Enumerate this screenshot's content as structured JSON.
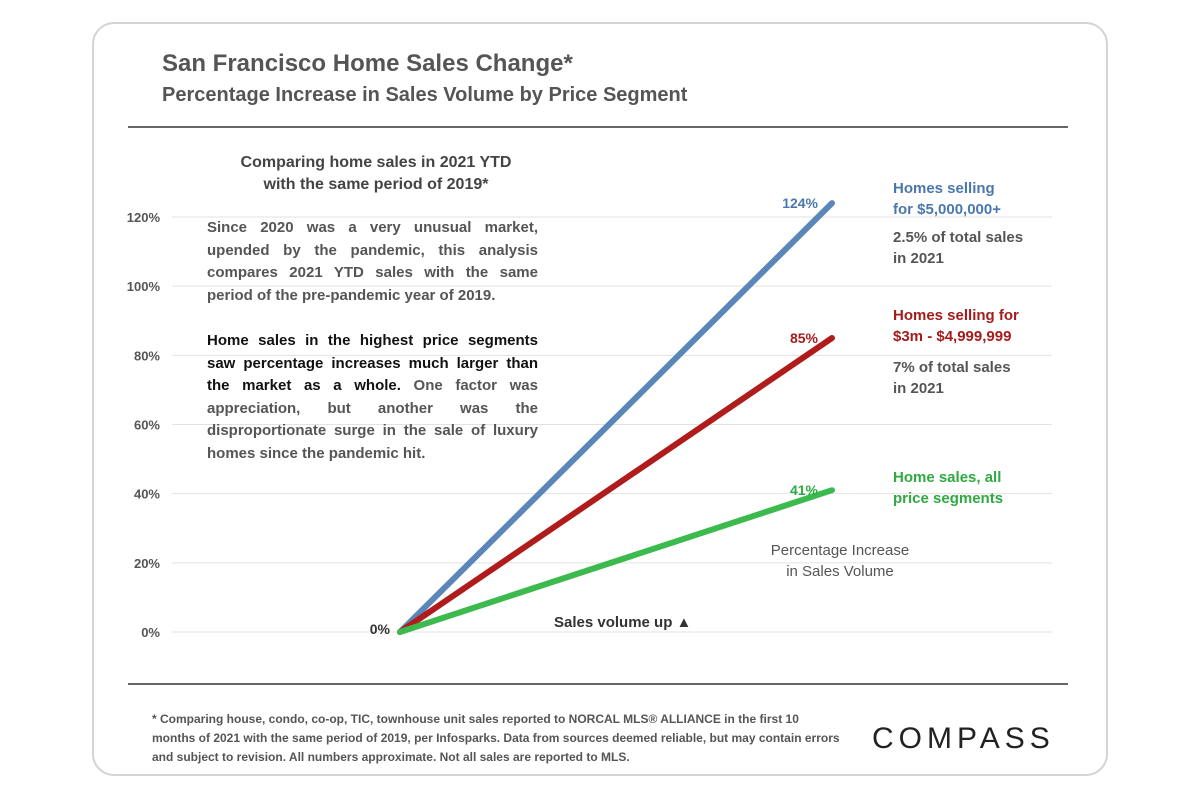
{
  "title": "San Francisco Home Sales Change*",
  "subtitle": "Percentage Increase in Sales Volume by Price Segment",
  "text_panel": {
    "heading_line1": "Comparing home sales in 2021 YTD",
    "heading_line2": "with the same period of 2019*",
    "para1": "Since 2020 was a very unusual market, upended by the pandemic, this analysis compares 2021 YTD sales with the same period of the pre-pandemic year of 2019.",
    "para2_bold": "Home sales in the highest price segments saw percentage increases much larger than the market as a whole.",
    "para2_rest": " One factor was appreciation, but another was the disproportionate surge in the sale of luxury homes since the pandemic hit."
  },
  "annotations": {
    "blue_line1": "Homes selling",
    "blue_line2": "for $5,000,000+",
    "blue_share1": "2.5% of total sales",
    "blue_share2": "in 2021",
    "red_line1": "Homes selling for",
    "red_line2": "$3m - $4,999,999",
    "red_share1": "7% of total sales",
    "red_share2": "in 2021",
    "green_line1": "Home sales, all",
    "green_line2": "price segments",
    "axis_caption1": "Percentage Increase",
    "axis_caption2": "in Sales Volume",
    "sales_volume_up": "Sales volume up ▲"
  },
  "footnote": "* Comparing house, condo, co-op, TIC, townhouse unit sales reported to NORCAL MLS® ALLIANCE in the first 10 months of 2021 with the same period of 2019, per Infosparks. Data from sources deemed reliable, but may contain errors and subject to revision. All numbers approximate. Not all sales are reported to MLS.",
  "logo": "COMPASS",
  "chart_data": {
    "type": "line",
    "x": [
      0,
      1
    ],
    "ylim": [
      0,
      120
    ],
    "yticks": [
      "0%",
      "20%",
      "40%",
      "60%",
      "80%",
      "100%",
      "120%"
    ],
    "ytick_values": [
      0,
      20,
      40,
      60,
      80,
      100,
      120
    ],
    "grid": true,
    "series": [
      {
        "name": "Homes selling for $5,000,000+",
        "values": [
          0,
          124
        ],
        "color": "#5b86b8",
        "start_label": "",
        "end_label": "124%",
        "label_color": "#4a78ac"
      },
      {
        "name": "Homes selling for $3m - $4,999,999",
        "values": [
          0,
          85
        ],
        "color": "#b01c1c",
        "start_label": "",
        "end_label": "85%",
        "label_color": "#a41c1c"
      },
      {
        "name": "Home sales, all price segments",
        "values": [
          0,
          41
        ],
        "color": "#3cba4e",
        "start_label": "0%",
        "end_label": "41%",
        "label_color": "#2eaa40"
      }
    ]
  }
}
